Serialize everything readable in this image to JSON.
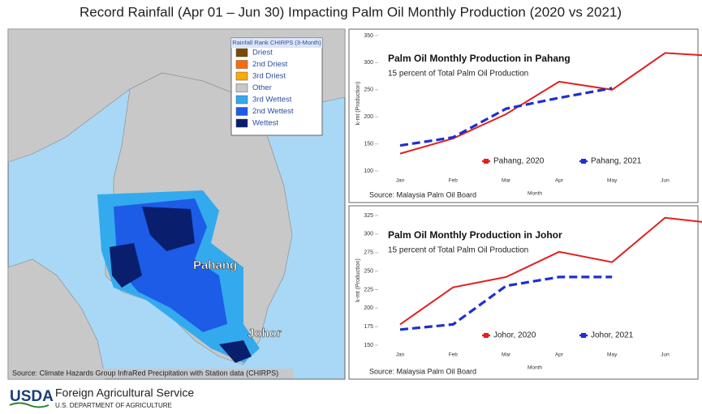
{
  "title": "Record Rainfall (Apr 01 – Jun 30) Impacting Palm Oil Monthly Production (2020 vs 2021)",
  "map": {
    "legend_title": "Rainfall Rank CHIRPS (3-Month)",
    "legend": [
      {
        "label": "Driest",
        "color": "#7a4a00"
      },
      {
        "label": "2nd Driest",
        "color": "#ff6a00"
      },
      {
        "label": "3rd Driest",
        "color": "#ffaa00"
      },
      {
        "label": "Other",
        "color": "#c8c8c8"
      },
      {
        "label": "3rd Wettest",
        "color": "#33aaee"
      },
      {
        "label": "2nd Wettest",
        "color": "#1c5ce6"
      },
      {
        "label": "Wettest",
        "color": "#0a1e6e"
      }
    ],
    "labels": [
      "Pahang",
      "Johor"
    ],
    "source": "Source: Climate Hazards Group InfraRed Precipitation with Station data (CHIRPS)"
  },
  "footer": {
    "logo": "USDA",
    "agency": "Foreign Agricultural Service",
    "department": "U.S. DEPARTMENT OF AGRICULTURE"
  },
  "chart_data": [
    {
      "type": "line",
      "title": "Palm Oil Monthly Production in Pahang",
      "subtitle": "15 percent of Total Palm Oil Production",
      "source": "Source: Malaysia Palm Oil Board",
      "x_label": "Month",
      "y_label": "k-mt (Production)",
      "categories": [
        "Jan",
        "Feb",
        "Mar",
        "Apr",
        "May",
        "Jun",
        null
      ],
      "ylim": [
        100,
        350
      ],
      "yticks": [
        100,
        150,
        200,
        250,
        300,
        350
      ],
      "series": [
        {
          "name": "Pahang, 2020",
          "color": "#e02020",
          "dashed": false,
          "values": [
            132,
            160,
            205,
            265,
            250,
            318,
            312
          ]
        },
        {
          "name": "Pahang, 2021",
          "color": "#1f2fd0",
          "dashed": true,
          "values": [
            147,
            162,
            215,
            235,
            253,
            null,
            null
          ]
        }
      ]
    },
    {
      "type": "line",
      "title": "Palm Oil Monthly Production in Johor",
      "subtitle": "15 percent of Total Palm Oil Production",
      "source": "Source: Malaysia Palm Oil Board",
      "x_label": "Month",
      "y_label": "k-mt (Production)",
      "categories": [
        "Jan",
        "Feb",
        "Mar",
        "Apr",
        "May",
        "Jun",
        null
      ],
      "ylim": [
        150,
        325
      ],
      "yticks": [
        150,
        175,
        200,
        225,
        250,
        275,
        300,
        325
      ],
      "series": [
        {
          "name": "Johor, 2020",
          "color": "#e02020",
          "dashed": false,
          "values": [
            178,
            228,
            242,
            276,
            262,
            322,
            314
          ]
        },
        {
          "name": "Johor, 2021",
          "color": "#1f2fd0",
          "dashed": true,
          "values": [
            171,
            178,
            230,
            242,
            242,
            null,
            null
          ]
        }
      ]
    }
  ]
}
